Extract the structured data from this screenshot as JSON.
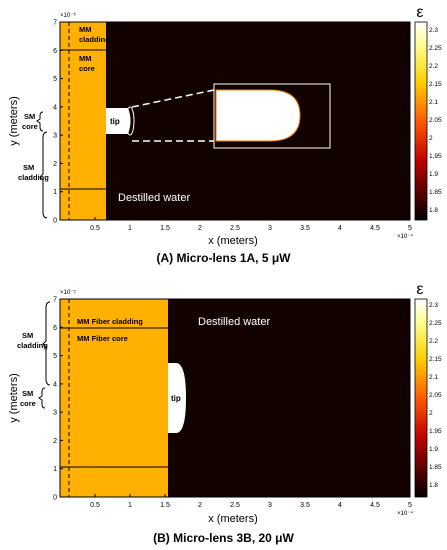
{
  "colorbar_symbol": "ε",
  "panels": [
    {
      "caption": "(A) Micro-lens 1A, 5 μW",
      "x_axis_label": "x (meters)",
      "y_axis_label": "y (meters)",
      "x_exponent": "×10⁻⁴",
      "y_exponent": "×10⁻⁵",
      "x_ticks": [
        "0.5",
        "1",
        "1.5",
        "2",
        "2.5",
        "3",
        "3.5",
        "4",
        "4.5",
        "5"
      ],
      "y_ticks": [
        "0",
        "1",
        "2",
        "3",
        "4",
        "5",
        "6",
        "7"
      ],
      "colorbar_ticks": [
        "2.3",
        "2.25",
        "2.2",
        "2.15",
        "2.1",
        "2.05",
        "2",
        "1.95",
        "1.9",
        "1.85",
        "1.8"
      ],
      "labels": {
        "mm_cladding_line1": "MM",
        "mm_cladding_line2": "cladding",
        "mm_core_line1": "MM",
        "mm_core_line2": "core",
        "sm_core_line1": "SM",
        "sm_core_line2": "core",
        "sm_cladding_line1": "SM",
        "sm_cladding_line2": "cladding",
        "tip": "tip",
        "water": "Destilled water"
      }
    },
    {
      "caption": "(B) Micro-lens 3B, 20 μW",
      "x_axis_label": "x (meters)",
      "y_axis_label": "y (meters)",
      "x_exponent": "×10⁻⁴",
      "y_exponent": "×10⁻⁵",
      "x_ticks": [
        "0.5",
        "1",
        "1.5",
        "2",
        "2.5",
        "3",
        "3.5",
        "4",
        "4.5",
        "5"
      ],
      "y_ticks": [
        "0",
        "1",
        "2",
        "3",
        "4",
        "5",
        "6",
        "7"
      ],
      "colorbar_ticks": [
        "2.3",
        "2.25",
        "2.2",
        "2.15",
        "2.1",
        "2.05",
        "2",
        "1.95",
        "1.9",
        "1.85",
        "1.8"
      ],
      "labels": {
        "mm_cladding": "MM Fiber cladding",
        "mm_core": "MM Fiber core",
        "sm_cladding_line1": "SM",
        "sm_cladding_line2": "cladding",
        "sm_core_line1": "SM",
        "sm_core_line2": "core",
        "tip": "tip",
        "water": "Destilled water"
      }
    }
  ],
  "colors": {
    "fiber": "#FFB000",
    "water": "#130300",
    "tip": "#ffffff"
  }
}
